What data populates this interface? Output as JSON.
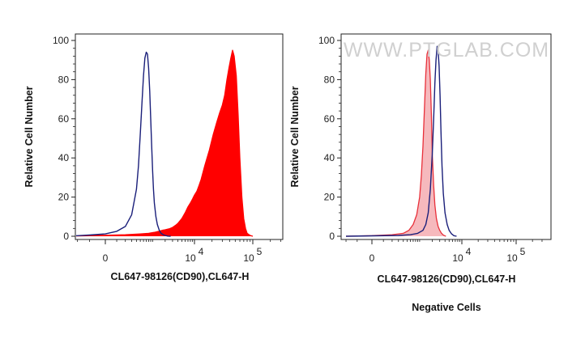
{
  "watermark": "WWW.PTGLAB.COM",
  "caption": "Negative Cells",
  "colors": {
    "isotype": "#1a1f7a",
    "stained_fill": "#ff0000",
    "stained_line": "#ff0000",
    "negative_fill": "#f6b9bd",
    "negative_line": "#e8303a",
    "axis": "#222222"
  },
  "chart_data": [
    {
      "type": "area",
      "xlabel": "CL647-98126(CD90),CL647-H",
      "ylabel": "Relative Cell Number",
      "x_scale": "biexponential",
      "ylim": [
        0,
        100
      ],
      "yticks": [
        0,
        20,
        40,
        60,
        80,
        100
      ],
      "xticks": [
        {
          "label": "0",
          "sup": ""
        },
        {
          "label": "10",
          "sup": "4"
        },
        {
          "label": "10",
          "sup": "5"
        }
      ],
      "grid": false,
      "series": [
        {
          "role": "stained",
          "style": "filled",
          "x": [
            -400,
            -100,
            200,
            500,
            800,
            1100,
            1400,
            1700,
            2000,
            2500,
            3000,
            3500,
            4000,
            5000,
            6000,
            7000,
            8000,
            9000,
            10000,
            11000,
            12000,
            13000,
            15000,
            18000,
            21000,
            24000,
            27000,
            30000,
            33000,
            36000,
            39000,
            42000,
            45000,
            48000,
            52000,
            56000,
            60000,
            65000,
            70000,
            75000,
            80000,
            90000,
            100000
          ],
          "y": [
            0,
            0.3,
            0.8,
            1.2,
            1.5,
            2,
            2.5,
            3,
            3.3,
            3.8,
            4.5,
            5.5,
            6.5,
            9,
            12,
            15,
            17,
            19,
            21,
            23,
            26,
            29,
            36,
            44,
            52,
            58,
            63,
            67,
            72,
            80,
            86,
            91,
            95,
            92,
            82,
            62,
            40,
            20,
            9,
            4,
            1.5,
            0.4,
            0
          ]
        },
        {
          "role": "isotype",
          "style": "line",
          "x": [
            -400,
            -200,
            -100,
            0,
            100,
            200,
            300,
            400,
            450,
            500,
            550,
            600,
            650,
            700,
            750,
            800,
            850,
            900,
            950,
            1000,
            1050,
            1100,
            1200,
            1300,
            1450,
            1600,
            1800,
            2000,
            2300,
            2700
          ],
          "y": [
            0,
            0.3,
            0.6,
            1.2,
            2.5,
            5,
            11,
            24,
            36,
            52,
            68,
            82,
            91,
            94,
            93,
            86,
            74,
            60,
            46,
            33,
            24,
            17,
            10,
            6,
            3,
            1.5,
            0.8,
            0.4,
            0.1,
            0
          ]
        }
      ]
    },
    {
      "type": "area",
      "xlabel": "CL647-98126(CD90),CL647-H",
      "ylabel": "Relative Cell Number",
      "x_scale": "biexponential",
      "ylim": [
        0,
        100
      ],
      "yticks": [
        0,
        20,
        40,
        60,
        80,
        100
      ],
      "xticks": [
        {
          "label": "0",
          "sup": ""
        },
        {
          "label": "10",
          "sup": "4"
        },
        {
          "label": "10",
          "sup": "5"
        }
      ],
      "grid": false,
      "series": [
        {
          "role": "negative-stained",
          "style": "filled",
          "x": [
            -200,
            0,
            200,
            400,
            550,
            700,
            850,
            1000,
            1100,
            1200,
            1300,
            1400,
            1500,
            1600,
            1700,
            1800,
            1900,
            2000,
            2150,
            2300,
            2500,
            2750,
            3000,
            3300,
            3700,
            4200
          ],
          "y": [
            0,
            0.3,
            0.8,
            1.5,
            3,
            6,
            11,
            20,
            31,
            46,
            65,
            83,
            93,
            95,
            90,
            80,
            62,
            42,
            26,
            16,
            9,
            5,
            3,
            1.5,
            0.5,
            0
          ]
        },
        {
          "role": "isotype",
          "style": "line",
          "x": [
            -200,
            0,
            300,
            600,
            900,
            1200,
            1400,
            1600,
            1800,
            2000,
            2150,
            2300,
            2450,
            2600,
            2750,
            2900,
            3050,
            3200,
            3400,
            3650,
            4000,
            4500,
            5000,
            5700,
            6500,
            7500
          ],
          "y": [
            0,
            0.2,
            0.4,
            0.8,
            1.5,
            3,
            6,
            12,
            24,
            42,
            60,
            78,
            90,
            97,
            95,
            87,
            72,
            54,
            36,
            22,
            12,
            6,
            3,
            1.2,
            0.3,
            0
          ]
        }
      ]
    }
  ]
}
